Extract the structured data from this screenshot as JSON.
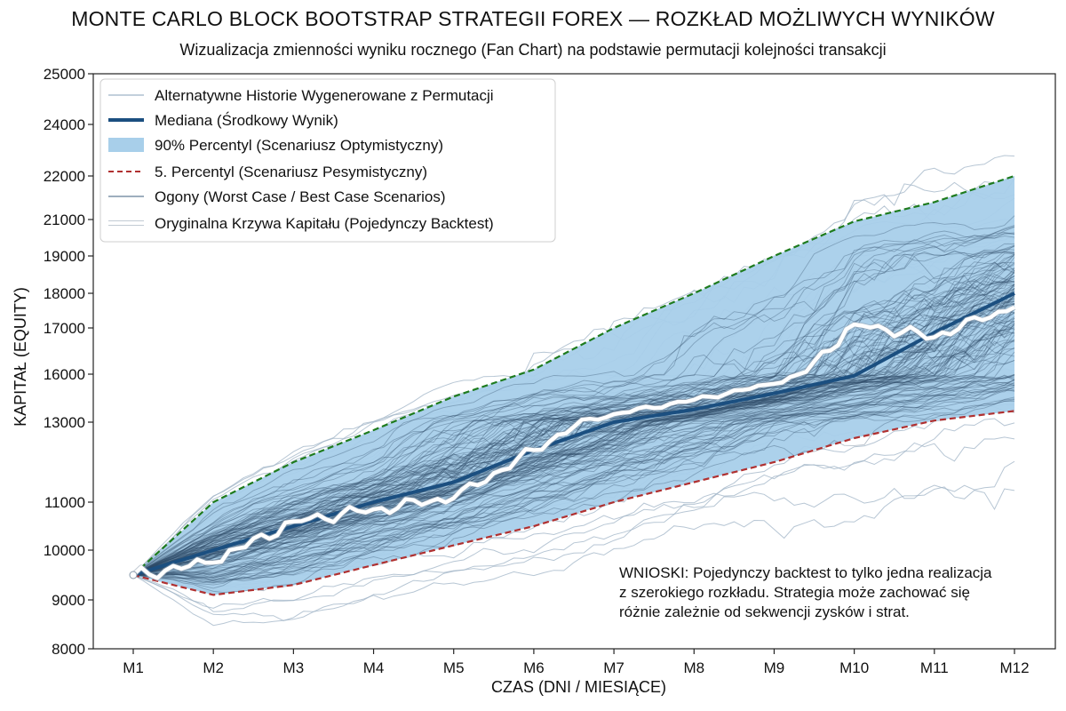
{
  "chart_data": {
    "type": "line",
    "title": "MONTE CARLO BLOCK BOOTSTRAP STRATEGII FOREX — ROZKŁAD MOŻLIWYCH WYNIKÓW",
    "subtitle": "Wizualizacja zmienności wyniku rocznego (Fan Chart) na podstawie permutacji kolejności transakcji",
    "xlabel": "CZAS (DNI / MIESIĄCE)",
    "ylabel": "KAPITAŁ (EQUITY)",
    "x": [
      "M1",
      "M2",
      "M3",
      "M4",
      "M5",
      "M6",
      "M7",
      "M8",
      "M9",
      "M10",
      "M11",
      "M12"
    ],
    "y_ticks": [
      8000,
      9000,
      10000,
      11000,
      13000,
      16000,
      17000,
      18000,
      19000,
      21000,
      22000,
      24000,
      25000
    ],
    "grid": false,
    "legend_position": "top-left",
    "legend": [
      "Alternatywne Historie Wygenerowane z Permutacji",
      "Mediana (Środkowy Wynik)",
      "90% Percentyl (Scenariusz Optymistyczny)",
      "5. Percentyl (Scenariusz Pesymistyczny)",
      "Ogony (Worst Case / Best Case Scenarios)",
      "Oryginalna Krzywa Kapitału (Pojedynczy Backtest)"
    ],
    "series": [
      {
        "name": "Mediana (Środkowy Wynik)",
        "values": [
          9500,
          10000,
          10500,
          11000,
          11500,
          12300,
          13000,
          13800,
          14800,
          15900,
          16900,
          18000
        ]
      },
      {
        "name": "90% Percentyl (Scenariusz Optymistyczny)",
        "values": [
          9500,
          11000,
          12000,
          12800,
          14600,
          16100,
          17000,
          18000,
          19000,
          20900,
          21400,
          22000
        ]
      },
      {
        "name": "5. Percentyl (Scenariusz Pesymistyczny)",
        "values": [
          9500,
          9100,
          9300,
          9700,
          10100,
          10500,
          11000,
          11500,
          12000,
          12600,
          13100,
          13700
        ]
      },
      {
        "name": "Oryginalna Krzywa Kapitału (Pojedynczy Backtest)",
        "values": [
          9500,
          9750,
          10600,
          10850,
          11100,
          12300,
          13500,
          14400,
          15400,
          17100,
          16800,
          17600
        ]
      }
    ],
    "annotation": "WNIOSKI: Pojedynczy backtest to tylko jedna realizacja z szerokiego rozkładu. Strategia może zachować się różnie zależnie od sekwencji zysków i strat.",
    "annotation_lines": [
      "WNIOSKI: Pojedynczy backtest to tylko jedna realizacja",
      " z szerokiego rozkładu. Strategia może zachować się",
      " różnie zależnie od sekwencji zysków i strat."
    ],
    "colors": {
      "band": "#a8cfea",
      "median": "#1b4f80",
      "upper": "#1e7b1e",
      "lower": "#b03030",
      "paths": "#2e4a66",
      "tails": "#9fb3c6",
      "original": "#ffffff"
    }
  }
}
